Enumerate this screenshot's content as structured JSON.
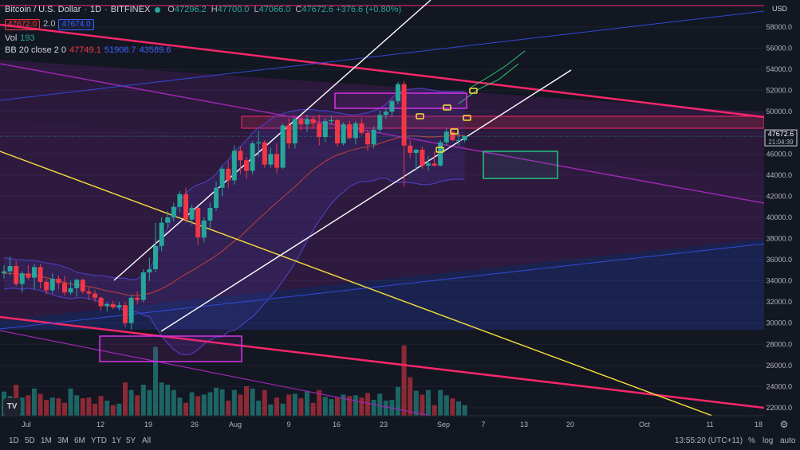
{
  "header": {
    "symbol": "Bitcoin / U.S. Dollar",
    "interval": "1D",
    "exchange": "BITFINEX",
    "open_label": "O",
    "open": "47296.2",
    "high_label": "H",
    "high": "47700.0",
    "low_label": "L",
    "low": "47066.0",
    "close_label": "C",
    "close": "47672.6",
    "change": "+376.6 (+0.80%)",
    "sell_price": "47672.0",
    "spread": "2.0",
    "buy_price": "47674.0"
  },
  "indicators": {
    "vol_label": "Vol",
    "vol_value": "193",
    "bb_label": "BB 20 close 2 0",
    "bb_basis": "47749.1",
    "bb_upper": "51908.7",
    "bb_lower": "43589.6"
  },
  "price_tag": {
    "price": "47672.6",
    "countdown": "21:04:39"
  },
  "toolbar": {
    "ranges": [
      "1D",
      "5D",
      "1M",
      "3M",
      "6M",
      "YTD",
      "1Y",
      "5Y",
      "All"
    ],
    "time": "13:55:20 (UTC+11)",
    "percent": "%",
    "log": "log",
    "auto": "auto"
  },
  "colors": {
    "up": "#26a69a",
    "down": "#f23645",
    "trend": "#f7266a",
    "purple": "#9c27b0",
    "yellow": "#f9e03a",
    "white": "#ffffff",
    "blue": "#3049d8",
    "bb": "#4c3dbc"
  },
  "chart_data": {
    "type": "candlestick",
    "yaxis": {
      "min": 20500,
      "max": 60500,
      "ticks": [
        22000,
        24000,
        26000,
        28000,
        30000,
        32000,
        34000,
        36000,
        38000,
        40000,
        42000,
        44000,
        46000,
        48000,
        50000,
        52000,
        54000,
        56000,
        58000
      ]
    },
    "xaxis": {
      "labels": [
        "Jul",
        "12",
        "19",
        "26",
        "Aug",
        "9",
        "16",
        "23",
        "Sep",
        "7",
        "13",
        "20",
        "Oct",
        "11",
        "18"
      ]
    },
    "candles": [
      [
        34700,
        35500,
        34200,
        34900
      ],
      [
        34900,
        36300,
        34500,
        35400
      ],
      [
        35400,
        35900,
        33500,
        33700
      ],
      [
        33700,
        34900,
        32900,
        34700
      ],
      [
        34700,
        35500,
        34100,
        34300
      ],
      [
        34300,
        35600,
        33200,
        35300
      ],
      [
        35300,
        35600,
        33300,
        33900
      ],
      [
        33900,
        34200,
        32700,
        33100
      ],
      [
        33100,
        34700,
        32800,
        34200
      ],
      [
        34200,
        34500,
        33200,
        33800
      ],
      [
        33800,
        34500,
        32600,
        32900
      ],
      [
        32900,
        34000,
        32700,
        33300
      ],
      [
        33300,
        34200,
        32500,
        34100
      ],
      [
        34100,
        34200,
        32800,
        33000
      ],
      [
        33000,
        33400,
        32200,
        32800
      ],
      [
        32800,
        33100,
        32000,
        32400
      ],
      [
        32400,
        32500,
        31200,
        31600
      ],
      [
        31600,
        32000,
        31100,
        31800
      ],
      [
        31800,
        32100,
        31300,
        31500
      ],
      [
        31500,
        32000,
        31200,
        31700
      ],
      [
        31700,
        32000,
        29600,
        30000
      ],
      [
        30000,
        32700,
        29400,
        32400
      ],
      [
        32400,
        33000,
        31800,
        32200
      ],
      [
        32200,
        35100,
        32000,
        34800
      ],
      [
        34800,
        36200,
        34000,
        35100
      ],
      [
        35100,
        39500,
        34800,
        37300
      ],
      [
        37300,
        40000,
        36800,
        39500
      ],
      [
        39500,
        40600,
        39000,
        40000
      ],
      [
        40000,
        41400,
        39600,
        41000
      ],
      [
        41000,
        42500,
        40500,
        42200
      ],
      [
        42200,
        42800,
        39500,
        39800
      ],
      [
        39800,
        41200,
        39300,
        40900
      ],
      [
        40900,
        41000,
        37400,
        38100
      ],
      [
        38100,
        40000,
        37600,
        39700
      ],
      [
        39700,
        41400,
        39000,
        40900
      ],
      [
        40900,
        43400,
        40600,
        42800
      ],
      [
        42800,
        44800,
        42000,
        44600
      ],
      [
        44600,
        45300,
        42800,
        43500
      ],
      [
        43500,
        46800,
        43100,
        46300
      ],
      [
        46300,
        46700,
        44100,
        45400
      ],
      [
        45400,
        45700,
        43600,
        44400
      ],
      [
        44400,
        47200,
        44100,
        47000
      ],
      [
        47000,
        48200,
        45700,
        47100
      ],
      [
        47100,
        47300,
        44700,
        45000
      ],
      [
        45000,
        46600,
        44700,
        46000
      ],
      [
        46000,
        47000,
        44200,
        44700
      ],
      [
        44700,
        48900,
        44600,
        48700
      ],
      [
        48700,
        49400,
        46500,
        47000
      ],
      [
        47000,
        49400,
        46500,
        49300
      ],
      [
        49300,
        49500,
        48200,
        48800
      ],
      [
        48800,
        49700,
        48100,
        49300
      ],
      [
        49300,
        49600,
        48400,
        48900
      ],
      [
        48900,
        49700,
        46800,
        47600
      ],
      [
        47600,
        49400,
        47100,
        49100
      ],
      [
        49100,
        49600,
        48800,
        49200
      ],
      [
        49200,
        49300,
        46700,
        47000
      ],
      [
        47000,
        49000,
        46800,
        48800
      ],
      [
        48800,
        49100,
        47400,
        47500
      ],
      [
        47500,
        49100,
        46900,
        48900
      ],
      [
        48900,
        49400,
        47800,
        48000
      ],
      [
        48000,
        48300,
        46300,
        46900
      ],
      [
        46900,
        48600,
        46500,
        48300
      ],
      [
        48300,
        50100,
        48000,
        49700
      ],
      [
        49700,
        50300,
        49300,
        50000
      ],
      [
        50000,
        51200,
        49500,
        51000
      ],
      [
        51000,
        52800,
        50700,
        52600
      ],
      [
        52600,
        52900,
        42900,
        46800
      ],
      [
        46800,
        47300,
        45600,
        46100
      ],
      [
        46100,
        46500,
        44400,
        46400
      ],
      [
        46400,
        46700,
        44600,
        44900
      ],
      [
        44900,
        45800,
        44400,
        45100
      ],
      [
        45100,
        46200,
        44800,
        44900
      ],
      [
        44900,
        47300,
        44800,
        47100
      ],
      [
        47100,
        48400,
        46800,
        48100
      ],
      [
        48100,
        48200,
        47200,
        47300
      ],
      [
        47300,
        48100,
        46800,
        47300
      ],
      [
        47300,
        47700,
        47100,
        47700
      ]
    ],
    "volume_max": 10,
    "volume": [
      3.2,
      2.6,
      4.1,
      2.4,
      2.7,
      3.6,
      2.9,
      2.1,
      2.4,
      2.3,
      1.7,
      3.6,
      2.7,
      2.3,
      2.4,
      1.6,
      2.6,
      2.0,
      1.4,
      1.6,
      4.4,
      3.4,
      2.7,
      4.1,
      3.4,
      9.1,
      4.4,
      4.1,
      3.4,
      2.4,
      1.7,
      3.1,
      2.6,
      2.8,
      3.1,
      3.7,
      3.5,
      2.0,
      3.4,
      2.8,
      3.9,
      3.6,
      2.0,
      3.4,
      1.5,
      2.4,
      1.6,
      2.8,
      2.9,
      2.3,
      3.3,
      1.7,
      3.4,
      2.5,
      2.2,
      2.4,
      2.8,
      2.6,
      2.7,
      2.4,
      3.0,
      2.1,
      2.9,
      2.0,
      2.1,
      3.8,
      9.3,
      5.1,
      3.3,
      2.8,
      3.4,
      1.4,
      3.4,
      2.7,
      2.3,
      1.9,
      1.4
    ],
    "bb_basis": [
      34700,
      34700,
      34650,
      34600,
      34600,
      34550,
      34450,
      34300,
      34150,
      34000,
      33850,
      33700,
      33600,
      33550,
      33450,
      33350,
      33200,
      33050,
      32950,
      32850,
      32700,
      32600,
      32600,
      32700,
      32800,
      33000,
      33250,
      33550,
      33900,
      34300,
      34650,
      34950,
      35300,
      35650,
      36000,
      36400,
      36800,
      37300,
      37750,
      38200,
      38750,
      39300,
      39850,
      40350,
      40900,
      41400,
      41900,
      42400,
      42900,
      43450,
      44000,
      44500,
      44900,
      45300,
      45650,
      45900,
      46100,
      46300,
      46450,
      46600,
      46650,
      46800,
      47000,
      47200,
      47350,
      47550,
      47650,
      47700,
      47700,
      47650,
      47600,
      47600,
      47650,
      47700,
      47750,
      47750,
      47750
    ],
    "bb_upper": [
      36200,
      36100,
      36000,
      36000,
      35900,
      35900,
      35800,
      35700,
      35600,
      35500,
      35300,
      35100,
      34800,
      34700,
      34600,
      34500,
      34500,
      34400,
      34300,
      34250,
      34250,
      34100,
      34150,
      34650,
      35000,
      36300,
      37700,
      39000,
      40300,
      41500,
      42300,
      42800,
      43100,
      43300,
      43600,
      44100,
      44900,
      45400,
      46200,
      46700,
      47300,
      48000,
      48500,
      48800,
      49300,
      49600,
      49800,
      50000,
      50100,
      50200,
      50200,
      50200,
      50100,
      50100,
      50000,
      49900,
      49800,
      49700,
      49700,
      49800,
      49900,
      50100,
      50300,
      50700,
      51300,
      51800,
      52000,
      52100,
      52200,
      52200,
      52100,
      52000,
      51900,
      51900,
      51900,
      51900,
      51900
    ],
    "bb_lower": [
      33200,
      33300,
      33300,
      33200,
      33300,
      33200,
      33100,
      32900,
      32700,
      32500,
      32400,
      32300,
      32400,
      32400,
      32300,
      32200,
      31900,
      31700,
      31600,
      31450,
      31150,
      31100,
      31050,
      30750,
      30600,
      29700,
      28800,
      28100,
      27500,
      27100,
      27000,
      27100,
      27500,
      28000,
      28400,
      28700,
      28700,
      29200,
      29300,
      29700,
      30200,
      30600,
      31200,
      31900,
      32500,
      33200,
      34000,
      34800,
      35700,
      36700,
      37800,
      38800,
      39700,
      40500,
      41300,
      41900,
      42400,
      42900,
      43200,
      43400,
      43400,
      43500,
      43700,
      43700,
      43400,
      43300,
      43300,
      43300,
      43200,
      43100,
      43100,
      43200,
      43400,
      43500,
      43600,
      43600,
      43600
    ]
  }
}
